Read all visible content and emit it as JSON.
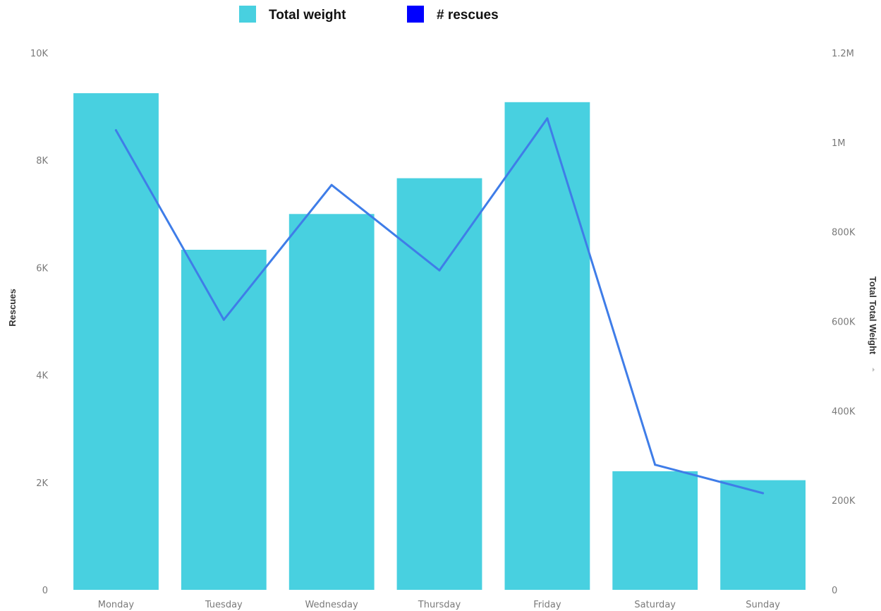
{
  "chart_data": {
    "type": "bar",
    "categories": [
      "Monday",
      "Tuesday",
      "Wednesday",
      "Thursday",
      "Friday",
      "Saturday",
      "Sunday"
    ],
    "series": [
      {
        "name": "Total weight",
        "type": "bar",
        "axis": "right",
        "color": "#48d0e0",
        "values": [
          1110000,
          760000,
          840000,
          920000,
          1090000,
          265000,
          245000
        ]
      },
      {
        "name": "# rescues",
        "type": "line",
        "axis": "left",
        "color": "#3f7de8",
        "values": [
          8560,
          5030,
          7540,
          5950,
          8780,
          2330,
          1800
        ]
      }
    ],
    "legend": {
      "position": "top",
      "items": [
        {
          "label": "Total weight",
          "color": "#48d0e0"
        },
        {
          "label": "# rescues",
          "color": "#0000ff"
        }
      ]
    },
    "y_left": {
      "label": "Rescues",
      "range": [
        0,
        10000
      ],
      "ticks": [
        0,
        2000,
        4000,
        6000,
        8000,
        10000
      ],
      "tick_labels": [
        "0",
        "2K",
        "4K",
        "6K",
        "8K",
        "10K"
      ]
    },
    "y_right": {
      "label": "Total Total Weight",
      "range": [
        0,
        1200000
      ],
      "ticks": [
        0,
        200000,
        400000,
        600000,
        800000,
        1000000,
        1200000
      ],
      "tick_labels": [
        "0",
        "200K",
        "400K",
        "600K",
        "800K",
        "1M",
        "1.2M"
      ]
    },
    "grid": false
  }
}
